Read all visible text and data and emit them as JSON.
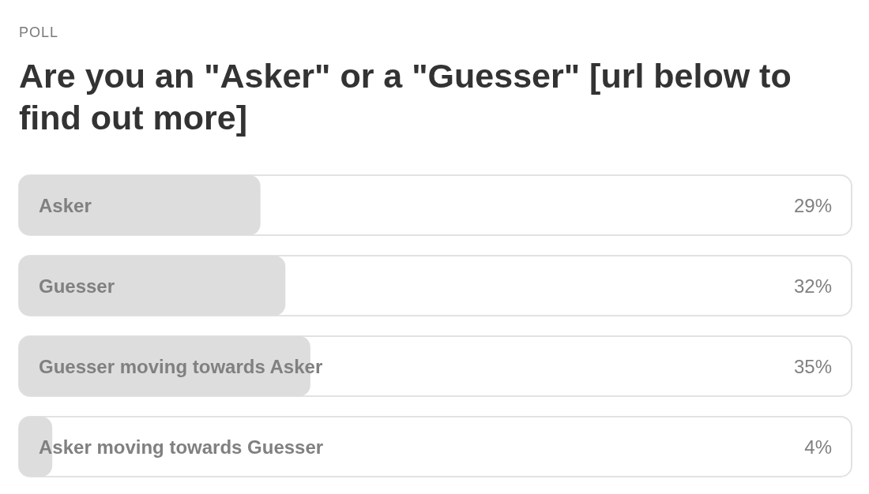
{
  "chart_data": {
    "type": "bar",
    "orientation": "horizontal",
    "subtitle": "POLL",
    "title": "Are you an \"Asker\" or a \"Guesser\" [url below to find out more]",
    "categories": [
      "Asker",
      "Guesser",
      "Guesser moving towards Asker",
      "Asker moving towards Guesser"
    ],
    "values": [
      29,
      32,
      35,
      4
    ],
    "color": "#dddddd",
    "value_labels": [
      "29%",
      "32%",
      "35%",
      "4%"
    ],
    "xlim": [
      0,
      100
    ],
    "tick_labels": false
  }
}
